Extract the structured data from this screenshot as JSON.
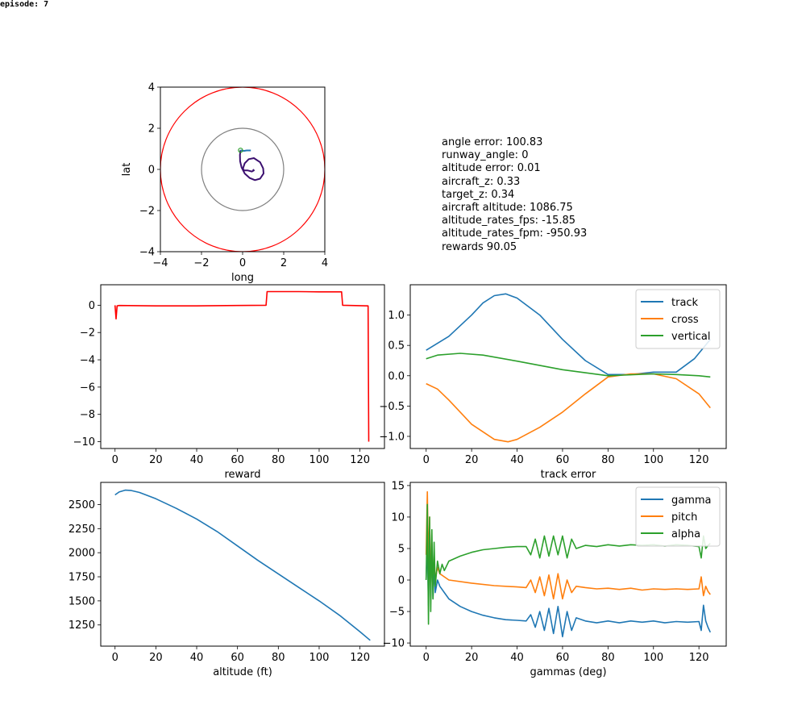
{
  "figure": {
    "episode_label": "episode: 7",
    "info_lines": [
      "angle error: 100.83",
      "runway_angle: 0",
      "altitude error: 0.01",
      "aircraft_z: 0.33",
      "target_z: 0.34",
      "aircraft altitude: 1086.75",
      "altitude_rates_fps: -15.85",
      "altitude_rates_fpm: -950.93",
      "rewards 90.05"
    ]
  },
  "chart_data": [
    {
      "type": "line",
      "id": "map",
      "title": "",
      "xlabel": "long",
      "ylabel": "lat",
      "xlim": [
        -4,
        4
      ],
      "ylim": [
        -4,
        4
      ],
      "xticks": [
        -4,
        -2,
        0,
        2,
        4
      ],
      "yticks": [
        -4,
        -2,
        0,
        2,
        4
      ],
      "circles": [
        {
          "cx": 0,
          "cy": 0,
          "r": 4,
          "color": "#ff0000"
        },
        {
          "cx": 0,
          "cy": 0,
          "r": 2,
          "color": "#808080"
        }
      ],
      "target_marker": {
        "x": -0.1,
        "y": 0.93,
        "color": "#2ca02c"
      },
      "series": [
        {
          "color": "#3b0f6f",
          "x": [
            -0.1,
            -0.13,
            -0.12,
            -0.05,
            0.1,
            0.35,
            0.6,
            0.85,
            1.02,
            1.0,
            0.85,
            0.55,
            0.3,
            0.1,
            0.02,
            0.05,
            0.25,
            0.45,
            0.55,
            0.5
          ],
          "y": [
            0.93,
            0.7,
            0.4,
            0.1,
            -0.2,
            -0.42,
            -0.52,
            -0.45,
            -0.2,
            0.05,
            0.35,
            0.55,
            0.5,
            0.3,
            0.05,
            -0.05,
            -0.05,
            -0.1,
            -0.05,
            0.0
          ]
        },
        {
          "color": "#1f77b4",
          "x": [
            -0.1,
            0.05,
            0.2,
            0.4
          ],
          "y": [
            0.93,
            0.9,
            0.92,
            0.92
          ]
        }
      ]
    },
    {
      "type": "line",
      "id": "reward",
      "title": "",
      "xlabel": "reward",
      "ylabel": "",
      "xlim": [
        -7,
        132
      ],
      "ylim": [
        -10.5,
        1.5
      ],
      "xticks": [
        0,
        20,
        40,
        60,
        80,
        100,
        120
      ],
      "yticks": [
        -10,
        -8,
        -6,
        -4,
        -2,
        0
      ],
      "series": [
        {
          "color": "#ff0000",
          "x": [
            0,
            0.5,
            1,
            2,
            20,
            40,
            60,
            74,
            74.5,
            90,
            100,
            111,
            111.5,
            124,
            124.3
          ],
          "y": [
            0,
            -1,
            -0.05,
            -0.02,
            -0.05,
            -0.05,
            -0.02,
            0.0,
            1.0,
            1.0,
            0.98,
            0.98,
            0.0,
            -0.05,
            -10
          ]
        }
      ]
    },
    {
      "type": "line",
      "id": "track_error",
      "title": "",
      "xlabel": "track error",
      "ylabel": "",
      "xlim": [
        -7,
        132
      ],
      "ylim": [
        -1.2,
        1.5
      ],
      "xticks": [
        0,
        20,
        40,
        60,
        80,
        100,
        120
      ],
      "yticks": [
        -1.0,
        -0.5,
        0.0,
        0.5,
        1.0
      ],
      "legend": "top-right",
      "series": [
        {
          "name": "track",
          "color": "#1f77b4",
          "x": [
            0,
            10,
            20,
            25,
            30,
            35,
            40,
            50,
            60,
            70,
            80,
            90,
            100,
            110,
            118,
            125
          ],
          "y": [
            0.42,
            0.65,
            1.0,
            1.2,
            1.32,
            1.35,
            1.28,
            1.0,
            0.6,
            0.25,
            0.02,
            0.02,
            0.06,
            0.06,
            0.28,
            0.6
          ]
        },
        {
          "name": "cross",
          "color": "#ff7f0e",
          "x": [
            0,
            5,
            10,
            20,
            30,
            36,
            40,
            50,
            60,
            70,
            80,
            90,
            100,
            110,
            120,
            125
          ],
          "y": [
            -0.13,
            -0.22,
            -0.4,
            -0.8,
            -1.05,
            -1.09,
            -1.05,
            -0.85,
            -0.6,
            -0.3,
            -0.02,
            0.03,
            0.03,
            -0.05,
            -0.3,
            -0.53
          ]
        },
        {
          "name": "vertical",
          "color": "#2ca02c",
          "x": [
            0,
            5,
            15,
            25,
            40,
            60,
            80,
            100,
            110,
            120,
            125
          ],
          "y": [
            0.28,
            0.34,
            0.37,
            0.34,
            0.24,
            0.1,
            0.0,
            0.03,
            0.02,
            0.0,
            -0.02
          ]
        }
      ]
    },
    {
      "type": "line",
      "id": "altitude",
      "title": "",
      "xlabel": "altitude (ft)",
      "ylabel": "",
      "xlim": [
        -7,
        132
      ],
      "ylim": [
        1030,
        2730
      ],
      "xticks": [
        0,
        20,
        40,
        60,
        80,
        100,
        120
      ],
      "yticks": [
        1250,
        1500,
        1750,
        2000,
        2250,
        2500
      ],
      "series": [
        {
          "color": "#1f77b4",
          "x": [
            0,
            2,
            5,
            8,
            12,
            20,
            30,
            40,
            50,
            60,
            70,
            80,
            90,
            100,
            110,
            120,
            125
          ],
          "y": [
            2600,
            2630,
            2650,
            2645,
            2625,
            2560,
            2460,
            2350,
            2220,
            2070,
            1920,
            1780,
            1640,
            1500,
            1350,
            1180,
            1090
          ]
        }
      ]
    },
    {
      "type": "line",
      "id": "gammas",
      "title": "",
      "xlabel": "gammas (deg)",
      "ylabel": "",
      "xlim": [
        -7,
        132
      ],
      "ylim": [
        -10.5,
        15.5
      ],
      "xticks": [
        0,
        20,
        40,
        60,
        80,
        100,
        120
      ],
      "yticks": [
        -10,
        -5,
        0,
        5,
        10,
        15
      ],
      "legend": "top-right",
      "series": [
        {
          "name": "gamma",
          "color": "#1f77b4",
          "x": [
            0,
            0.5,
            1,
            1.5,
            2,
            2.5,
            3,
            3.5,
            4,
            5,
            6,
            7,
            8,
            10,
            15,
            20,
            25,
            30,
            35,
            40,
            44,
            46,
            48,
            50,
            52,
            54,
            56,
            58,
            60,
            62,
            64,
            66,
            70,
            75,
            80,
            85,
            90,
            95,
            100,
            105,
            110,
            115,
            120,
            121,
            122,
            123,
            124,
            125
          ],
          "y": [
            0,
            6,
            -4,
            9,
            -2,
            5,
            -3,
            2,
            -2,
            0,
            -1,
            -1.5,
            -2,
            -3,
            -4.2,
            -5,
            -5.6,
            -6,
            -6.3,
            -6.4,
            -6.5,
            -5.5,
            -7.5,
            -5,
            -8,
            -4.5,
            -8.5,
            -4.2,
            -9,
            -5,
            -8,
            -6,
            -6.5,
            -6.8,
            -6.5,
            -6.8,
            -6.5,
            -6.7,
            -6.5,
            -6.8,
            -6.6,
            -6.7,
            -6.6,
            -8,
            -4,
            -6.5,
            -7.5,
            -8.3
          ]
        },
        {
          "name": "pitch",
          "color": "#ff7f0e",
          "x": [
            0,
            0.5,
            1,
            1.5,
            2,
            2.5,
            3,
            3.5,
            4,
            5,
            6,
            8,
            10,
            20,
            30,
            40,
            44,
            46,
            48,
            50,
            52,
            54,
            56,
            58,
            60,
            62,
            64,
            66,
            70,
            75,
            80,
            85,
            90,
            95,
            100,
            105,
            110,
            115,
            120,
            121,
            122,
            123,
            124,
            125
          ],
          "y": [
            4,
            14,
            2,
            10,
            -2,
            6,
            -1,
            4,
            0,
            2,
            1,
            0.5,
            0,
            -0.5,
            -0.9,
            -1.1,
            -1.2,
            0,
            -2,
            0.5,
            -2.5,
            0.8,
            -3,
            1,
            -3,
            0,
            -2,
            -1,
            -1.2,
            -1.4,
            -1.3,
            -1.5,
            -1.3,
            -1.6,
            -1.4,
            -1.5,
            -1.4,
            -1.5,
            -1.4,
            0.5,
            -2.5,
            -1,
            -1.8,
            -2.3
          ]
        },
        {
          "name": "alpha",
          "color": "#2ca02c",
          "x": [
            0,
            0.5,
            1,
            1.5,
            2,
            2.5,
            3,
            3.5,
            4,
            5,
            6,
            7,
            8,
            10,
            15,
            20,
            25,
            30,
            35,
            40,
            44,
            46,
            48,
            50,
            52,
            54,
            56,
            58,
            60,
            62,
            64,
            66,
            70,
            75,
            80,
            85,
            90,
            95,
            100,
            105,
            110,
            115,
            120,
            121,
            122,
            123,
            124,
            125
          ],
          "y": [
            0,
            12,
            -7,
            10,
            -5,
            8,
            -3,
            6,
            -1,
            3,
            1,
            2.5,
            1.5,
            3,
            3.8,
            4.4,
            4.8,
            5.0,
            5.2,
            5.3,
            5.3,
            4,
            6.5,
            3.5,
            7,
            3.8,
            7,
            4,
            7,
            3.5,
            6.5,
            5,
            5.5,
            5.3,
            5.6,
            5.4,
            5.6,
            5.5,
            5.6,
            5.4,
            5.6,
            5.5,
            5.3,
            3.5,
            7,
            5,
            5.5,
            5.8
          ]
        }
      ]
    }
  ]
}
